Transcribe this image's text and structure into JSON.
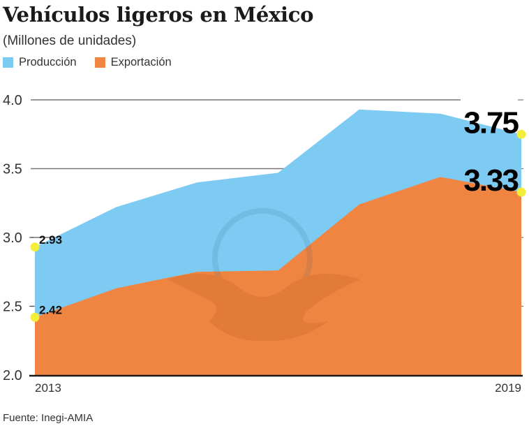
{
  "header": {
    "title": "Vehículos ligeros en México",
    "subtitle": "(Millones de unidades)"
  },
  "legend": [
    {
      "label": "Producción",
      "color": "#7dcbf2"
    },
    {
      "label": "Exportación",
      "color": "#f08441"
    }
  ],
  "footer": {
    "source": "Fuente: Inegi-AMIA"
  },
  "highlight_color": "#f4ee3a",
  "chart_data": {
    "type": "area",
    "title": "Vehículos ligeros en México",
    "subtitle": "(Millones de unidades)",
    "xlabel": "",
    "ylabel": "Millones de unidades",
    "x": [
      2013,
      2014,
      2015,
      2016,
      2017,
      2018,
      2019
    ],
    "x_tick_labels": [
      "2013",
      "2019"
    ],
    "y_ticks": [
      "2.0",
      "2.5",
      "3.0",
      "3.5",
      "4.0"
    ],
    "ylim": [
      2.0,
      4.0
    ],
    "grid": true,
    "legend_position": "top-left",
    "series": [
      {
        "name": "Producción",
        "color": "#7dcbf2",
        "values": [
          2.93,
          3.22,
          3.4,
          3.47,
          3.93,
          3.9,
          3.75
        ]
      },
      {
        "name": "Exportación",
        "color": "#f08441",
        "values": [
          2.42,
          2.63,
          2.75,
          2.76,
          3.24,
          3.44,
          3.33
        ]
      }
    ],
    "annotations": [
      {
        "series": "Producción",
        "x": 2013,
        "label": "2.93"
      },
      {
        "series": "Exportación",
        "x": 2013,
        "label": "2.42"
      },
      {
        "series": "Producción",
        "x": 2019,
        "label": "3.75"
      },
      {
        "series": "Exportación",
        "x": 2019,
        "label": "3.33"
      }
    ],
    "source": "Fuente: Inegi-AMIA"
  }
}
